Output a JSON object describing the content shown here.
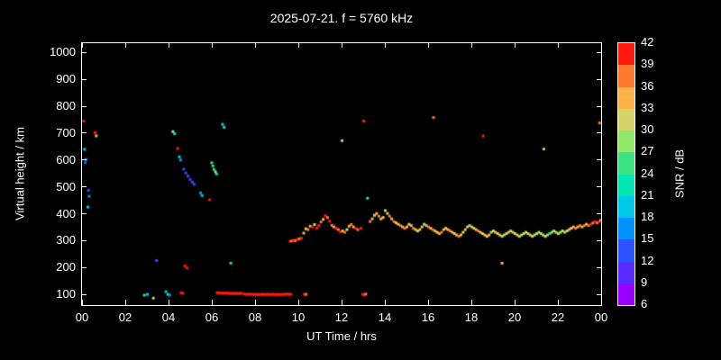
{
  "chart_data": {
    "type": "scatter",
    "title": "2025-07-21. f = 5760 kHz",
    "xlabel": "UT Time / hrs",
    "ylabel": "Virtual height / km",
    "xlim": [
      0,
      24
    ],
    "ylim": [
      60,
      1035
    ],
    "grid": false,
    "xticks": [
      {
        "v": 0,
        "label": "00"
      },
      {
        "v": 2,
        "label": "02"
      },
      {
        "v": 4,
        "label": "04"
      },
      {
        "v": 6,
        "label": "06"
      },
      {
        "v": 8,
        "label": "08"
      },
      {
        "v": 10,
        "label": "10"
      },
      {
        "v": 12,
        "label": "12"
      },
      {
        "v": 14,
        "label": "14"
      },
      {
        "v": 16,
        "label": "16"
      },
      {
        "v": 18,
        "label": "18"
      },
      {
        "v": 20,
        "label": "20"
      },
      {
        "v": 22,
        "label": "22"
      },
      {
        "v": 24,
        "label": "00"
      }
    ],
    "yticks": [
      100,
      200,
      300,
      400,
      500,
      600,
      700,
      800,
      900,
      1000
    ],
    "colorbar": {
      "label": "SNR / dB",
      "min": 6,
      "max": 42,
      "step": 3,
      "tick_labels": [
        "6",
        "9",
        "12",
        "15",
        "18",
        "21",
        "24",
        "27",
        "30",
        "33",
        "36",
        "39",
        "42"
      ],
      "colors": [
        "#9b00ff",
        "#5a2bff",
        "#2a52ff",
        "#0093ff",
        "#00c8e8",
        "#00e6b0",
        "#3ae380",
        "#8fe868",
        "#d6d468",
        "#ffb347",
        "#ff7a2e",
        "#ff1a0e"
      ]
    },
    "point_format": "[ut_hours, virtual_height_km, snr_db]",
    "points": [
      [
        0.08,
        745,
        40
      ],
      [
        0.12,
        640,
        18
      ],
      [
        0.18,
        602,
        15
      ],
      [
        0.15,
        590,
        12
      ],
      [
        0.3,
        487,
        12
      ],
      [
        0.33,
        465,
        15
      ],
      [
        0.27,
        425,
        18
      ],
      [
        0.6,
        702,
        40
      ],
      [
        0.66,
        690,
        34
      ],
      [
        2.88,
        97,
        24
      ],
      [
        3.02,
        100,
        18
      ],
      [
        3.3,
        86,
        27
      ],
      [
        3.45,
        226,
        12
      ],
      [
        3.88,
        110,
        18
      ],
      [
        3.97,
        100,
        21
      ],
      [
        4.05,
        98,
        15
      ],
      [
        4.2,
        706,
        27
      ],
      [
        4.28,
        698,
        21
      ],
      [
        4.42,
        643,
        40
      ],
      [
        4.5,
        612,
        18
      ],
      [
        4.56,
        600,
        15
      ],
      [
        4.7,
        566,
        12
      ],
      [
        4.8,
        552,
        12
      ],
      [
        4.9,
        540,
        12
      ],
      [
        5.0,
        528,
        10
      ],
      [
        5.1,
        518,
        12
      ],
      [
        5.18,
        510,
        12
      ],
      [
        5.48,
        478,
        15
      ],
      [
        5.55,
        468,
        18
      ],
      [
        5.9,
        452,
        40
      ],
      [
        6.0,
        590,
        24
      ],
      [
        6.05,
        578,
        21
      ],
      [
        6.1,
        565,
        24
      ],
      [
        6.17,
        556,
        27
      ],
      [
        6.22,
        548,
        21
      ],
      [
        6.5,
        733,
        18
      ],
      [
        6.57,
        722,
        21
      ],
      [
        4.76,
        206,
        40
      ],
      [
        4.86,
        198,
        40
      ],
      [
        6.88,
        216,
        21
      ],
      [
        4.58,
        106,
        40
      ],
      [
        4.66,
        104,
        40
      ],
      [
        6.25,
        106,
        40
      ],
      [
        6.33,
        105,
        42
      ],
      [
        6.41,
        105,
        40
      ],
      [
        6.49,
        104,
        40
      ],
      [
        6.57,
        104,
        42
      ],
      [
        6.65,
        105,
        40
      ],
      [
        6.73,
        104,
        40
      ],
      [
        6.81,
        104,
        42
      ],
      [
        6.89,
        103,
        40
      ],
      [
        6.97,
        104,
        40
      ],
      [
        7.05,
        103,
        42
      ],
      [
        7.13,
        104,
        40
      ],
      [
        7.21,
        103,
        40
      ],
      [
        7.29,
        103,
        42
      ],
      [
        7.37,
        104,
        40
      ],
      [
        7.5,
        101,
        40
      ],
      [
        7.58,
        100,
        42
      ],
      [
        7.66,
        100,
        40
      ],
      [
        7.74,
        101,
        40
      ],
      [
        7.82,
        100,
        42
      ],
      [
        7.9,
        100,
        40
      ],
      [
        7.98,
        99,
        40
      ],
      [
        8.06,
        100,
        42
      ],
      [
        8.14,
        100,
        40
      ],
      [
        8.22,
        99,
        40
      ],
      [
        8.3,
        100,
        42
      ],
      [
        8.38,
        100,
        40
      ],
      [
        8.46,
        99,
        40
      ],
      [
        8.54,
        100,
        42
      ],
      [
        8.62,
        100,
        40
      ],
      [
        8.7,
        99,
        40
      ],
      [
        8.78,
        100,
        42
      ],
      [
        8.86,
        100,
        40
      ],
      [
        8.94,
        99,
        40
      ],
      [
        9.02,
        100,
        42
      ],
      [
        9.1,
        100,
        40
      ],
      [
        9.18,
        99,
        40
      ],
      [
        9.26,
        100,
        42
      ],
      [
        9.34,
        100,
        40
      ],
      [
        9.42,
        100,
        40
      ],
      [
        9.5,
        101,
        42
      ],
      [
        9.58,
        100,
        40
      ],
      [
        9.66,
        100,
        40
      ],
      [
        10.28,
        100,
        40
      ],
      [
        10.36,
        100,
        37
      ],
      [
        12.98,
        100,
        40
      ],
      [
        13.06,
        98,
        40
      ],
      [
        13.12,
        101,
        37
      ],
      [
        9.62,
        297,
        40
      ],
      [
        9.7,
        299,
        38
      ],
      [
        9.78,
        301,
        40
      ],
      [
        9.86,
        300,
        37
      ],
      [
        9.95,
        304,
        40
      ],
      [
        10.05,
        307,
        37
      ],
      [
        10.15,
        309,
        40
      ],
      [
        10.25,
        328,
        34
      ],
      [
        10.35,
        344,
        31
      ],
      [
        10.45,
        341,
        37
      ],
      [
        10.55,
        354,
        34
      ],
      [
        10.65,
        351,
        40
      ],
      [
        10.75,
        360,
        31
      ],
      [
        10.85,
        347,
        40
      ],
      [
        10.95,
        356,
        40
      ],
      [
        11.05,
        369,
        37
      ],
      [
        11.15,
        379,
        34
      ],
      [
        11.25,
        393,
        40
      ],
      [
        11.35,
        386,
        37
      ],
      [
        11.45,
        372,
        40
      ],
      [
        11.55,
        357,
        37
      ],
      [
        11.65,
        351,
        34
      ],
      [
        11.75,
        346,
        40
      ],
      [
        11.85,
        341,
        37
      ],
      [
        11.95,
        333,
        40
      ],
      [
        12.05,
        336,
        34
      ],
      [
        12.15,
        331,
        37
      ],
      [
        12.25,
        341,
        31
      ],
      [
        12.35,
        354,
        34
      ],
      [
        12.45,
        360,
        37
      ],
      [
        12.55,
        351,
        34
      ],
      [
        12.65,
        346,
        40
      ],
      [
        12.75,
        341,
        37
      ],
      [
        12.9,
        346,
        40
      ],
      [
        13.2,
        458,
        25
      ],
      [
        13.32,
        371,
        37
      ],
      [
        13.42,
        381,
        34
      ],
      [
        13.52,
        394,
        31
      ],
      [
        13.62,
        401,
        34
      ],
      [
        13.72,
        391,
        37
      ],
      [
        13.82,
        381,
        34
      ],
      [
        13.92,
        386,
        31
      ],
      [
        14.02,
        412,
        28
      ],
      [
        14.12,
        401,
        34
      ],
      [
        14.22,
        391,
        37
      ],
      [
        14.32,
        381,
        34
      ],
      [
        14.42,
        371,
        37
      ],
      [
        14.52,
        366,
        31
      ],
      [
        14.62,
        361,
        34
      ],
      [
        14.72,
        356,
        37
      ],
      [
        14.82,
        351,
        34
      ],
      [
        14.92,
        346,
        37
      ],
      [
        15.02,
        351,
        34
      ],
      [
        15.12,
        361,
        31
      ],
      [
        15.22,
        356,
        34
      ],
      [
        15.32,
        346,
        37
      ],
      [
        15.42,
        341,
        34
      ],
      [
        15.52,
        336,
        31
      ],
      [
        15.62,
        341,
        34
      ],
      [
        15.72,
        351,
        31
      ],
      [
        15.82,
        361,
        28
      ],
      [
        15.92,
        356,
        34
      ],
      [
        16.02,
        351,
        37
      ],
      [
        16.12,
        346,
        34
      ],
      [
        16.22,
        341,
        37
      ],
      [
        16.32,
        336,
        34
      ],
      [
        16.42,
        331,
        31
      ],
      [
        16.52,
        326,
        34
      ],
      [
        16.62,
        331,
        37
      ],
      [
        16.72,
        341,
        34
      ],
      [
        16.82,
        346,
        31
      ],
      [
        16.92,
        341,
        34
      ],
      [
        17.02,
        336,
        37
      ],
      [
        17.12,
        331,
        34
      ],
      [
        17.22,
        326,
        31
      ],
      [
        17.32,
        321,
        34
      ],
      [
        17.42,
        316,
        37
      ],
      [
        17.52,
        321,
        34
      ],
      [
        17.62,
        331,
        31
      ],
      [
        17.72,
        341,
        34
      ],
      [
        17.82,
        351,
        31
      ],
      [
        17.92,
        356,
        28
      ],
      [
        18.02,
        351,
        34
      ],
      [
        18.12,
        346,
        31
      ],
      [
        18.22,
        341,
        34
      ],
      [
        18.32,
        336,
        37
      ],
      [
        18.42,
        331,
        34
      ],
      [
        18.52,
        326,
        31
      ],
      [
        18.62,
        321,
        34
      ],
      [
        18.72,
        316,
        31
      ],
      [
        18.82,
        321,
        34
      ],
      [
        18.92,
        331,
        28
      ],
      [
        19.02,
        336,
        31
      ],
      [
        19.12,
        331,
        34
      ],
      [
        19.22,
        326,
        31
      ],
      [
        19.32,
        321,
        34
      ],
      [
        19.42,
        316,
        31
      ],
      [
        19.52,
        321,
        28
      ],
      [
        19.62,
        326,
        31
      ],
      [
        19.72,
        331,
        34
      ],
      [
        19.82,
        336,
        31
      ],
      [
        19.92,
        331,
        28
      ],
      [
        20.02,
        326,
        31
      ],
      [
        20.12,
        321,
        34
      ],
      [
        20.22,
        316,
        31
      ],
      [
        20.32,
        321,
        28
      ],
      [
        20.42,
        326,
        31
      ],
      [
        20.52,
        331,
        28
      ],
      [
        20.62,
        326,
        31
      ],
      [
        20.72,
        321,
        34
      ],
      [
        20.82,
        316,
        31
      ],
      [
        20.92,
        321,
        28
      ],
      [
        21.02,
        326,
        31
      ],
      [
        21.12,
        331,
        28
      ],
      [
        21.22,
        326,
        31
      ],
      [
        21.32,
        321,
        28
      ],
      [
        21.42,
        316,
        31
      ],
      [
        21.52,
        321,
        28
      ],
      [
        21.62,
        326,
        25
      ],
      [
        21.72,
        331,
        28
      ],
      [
        21.82,
        336,
        31
      ],
      [
        21.92,
        331,
        28
      ],
      [
        22.02,
        326,
        31
      ],
      [
        22.12,
        331,
        28
      ],
      [
        22.22,
        336,
        31
      ],
      [
        22.32,
        331,
        28
      ],
      [
        22.42,
        336,
        31
      ],
      [
        22.52,
        341,
        34
      ],
      [
        22.62,
        346,
        31
      ],
      [
        22.72,
        351,
        34
      ],
      [
        22.82,
        346,
        37
      ],
      [
        22.92,
        351,
        34
      ],
      [
        23.02,
        356,
        37
      ],
      [
        23.12,
        351,
        34
      ],
      [
        23.22,
        356,
        37
      ],
      [
        23.32,
        361,
        34
      ],
      [
        23.42,
        356,
        37
      ],
      [
        23.52,
        361,
        40
      ],
      [
        23.62,
        366,
        37
      ],
      [
        23.72,
        371,
        40
      ],
      [
        23.82,
        366,
        37
      ],
      [
        23.92,
        371,
        40
      ],
      [
        23.98,
        376,
        37
      ],
      [
        12.02,
        672,
        28
      ],
      [
        13.02,
        745,
        40
      ],
      [
        16.25,
        758,
        37
      ],
      [
        18.55,
        690,
        40
      ],
      [
        21.35,
        641,
        28
      ],
      [
        23.93,
        738,
        37
      ],
      [
        19.42,
        216,
        34
      ]
    ]
  }
}
